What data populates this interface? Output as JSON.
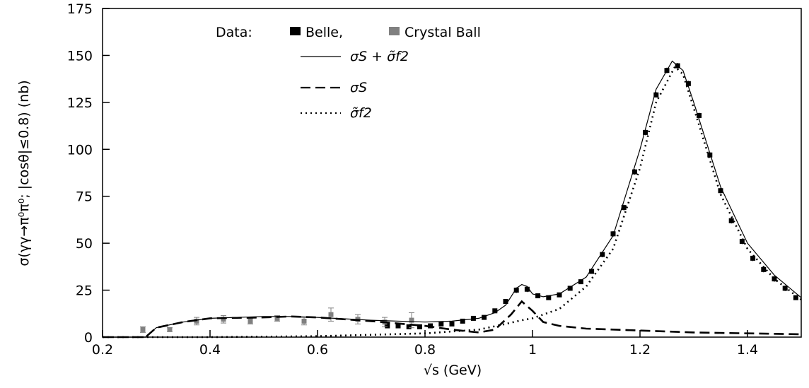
{
  "chart_data": {
    "type": "scatter",
    "xlabel": "√s (GeV)",
    "ylabel": "σ(γγ→π⁰π⁰; |cosθ|≤0.8) (nb)",
    "legend_title": "Data:",
    "xlim": [
      0.2,
      1.5
    ],
    "xticks": [
      0.2,
      0.4,
      0.6,
      0.8,
      1,
      1.2,
      1.4
    ],
    "ylim": [
      0,
      175
    ],
    "yticks": [
      0,
      25,
      50,
      75,
      100,
      125,
      150,
      175
    ],
    "series": [
      {
        "name": "Belle,",
        "color": "#000000",
        "style": "points",
        "x": [
          0.73,
          0.75,
          0.77,
          0.79,
          0.81,
          0.83,
          0.85,
          0.87,
          0.89,
          0.91,
          0.93,
          0.95,
          0.97,
          0.99,
          1.01,
          1.03,
          1.05,
          1.07,
          1.09,
          1.11,
          1.13,
          1.15,
          1.17,
          1.19,
          1.21,
          1.23,
          1.25,
          1.27,
          1.29,
          1.31,
          1.33,
          1.35,
          1.37,
          1.39,
          1.41,
          1.43,
          1.45,
          1.47,
          1.49
        ],
        "values": [
          6,
          6,
          5.5,
          5.5,
          6,
          7,
          7,
          8.5,
          10,
          10.5,
          14,
          19,
          25,
          25.5,
          22,
          21,
          22.5,
          26,
          29.5,
          35,
          44,
          55,
          69,
          88,
          109,
          129,
          142,
          144.5,
          135,
          118,
          97,
          78,
          62,
          51,
          42,
          36,
          31,
          26,
          21
        ],
        "errors": [
          1,
          1,
          1,
          1,
          1,
          1,
          1,
          1,
          1,
          1,
          1,
          1,
          1.5,
          1.5,
          1,
          1,
          1,
          1,
          1,
          1,
          1.5,
          1.5,
          1.5,
          1.5,
          1.5,
          1.5,
          1.5,
          1.5,
          1.5,
          1.5,
          1.5,
          1.5,
          1.5,
          1.5,
          1.5,
          1.5,
          1.5,
          1.5,
          1
        ]
      },
      {
        "name": "Crystal Ball",
        "color": "#808080",
        "style": "points",
        "x": [
          0.275,
          0.325,
          0.375,
          0.425,
          0.475,
          0.525,
          0.575,
          0.625,
          0.675,
          0.725,
          0.775
        ],
        "values": [
          4,
          4,
          8.5,
          9.5,
          8.5,
          10,
          8.5,
          12,
          9.5,
          8,
          9
        ],
        "errors": [
          1.5,
          1,
          2,
          2,
          1.5,
          1.5,
          2,
          3.5,
          2.5,
          2.5,
          4
        ]
      },
      {
        "name": "σS + σ̃f2",
        "color": "#000000",
        "style": "solid",
        "x": [
          0.2,
          0.28,
          0.3,
          0.35,
          0.4,
          0.5,
          0.55,
          0.6,
          0.7,
          0.8,
          0.85,
          0.9,
          0.93,
          0.95,
          0.97,
          0.98,
          0.99,
          1.0,
          1.02,
          1.05,
          1.1,
          1.15,
          1.2,
          1.23,
          1.26,
          1.28,
          1.3,
          1.35,
          1.4,
          1.45,
          1.5
        ],
        "values": [
          0,
          0,
          5,
          8,
          10,
          11,
          11,
          10.5,
          9,
          8,
          8.5,
          10,
          13,
          17,
          26,
          28,
          27,
          23,
          21.5,
          23,
          32,
          54,
          100,
          132,
          147,
          142,
          125,
          80,
          50,
          33,
          21
        ]
      },
      {
        "name": "σS",
        "color": "#000000",
        "style": "dashed",
        "x": [
          0.2,
          0.28,
          0.3,
          0.35,
          0.4,
          0.5,
          0.55,
          0.6,
          0.7,
          0.8,
          0.85,
          0.9,
          0.93,
          0.96,
          0.98,
          1.0,
          1.02,
          1.05,
          1.1,
          1.2,
          1.3,
          1.4,
          1.5
        ],
        "values": [
          0,
          0,
          5,
          8,
          10,
          10.5,
          11,
          10.5,
          8.5,
          6,
          4,
          2.5,
          4,
          12,
          19,
          14,
          8,
          6,
          4.5,
          3.5,
          2.5,
          2,
          1.5
        ]
      },
      {
        "name": "σ̃f2",
        "color": "#000000",
        "style": "dotted",
        "x": [
          0.2,
          0.4,
          0.6,
          0.8,
          0.9,
          0.95,
          0.98,
          1.0,
          1.05,
          1.1,
          1.15,
          1.2,
          1.23,
          1.265,
          1.28,
          1.3,
          1.35,
          1.4,
          1.45,
          1.5
        ],
        "values": [
          0,
          0,
          0.5,
          2,
          4,
          7,
          9,
          10,
          15,
          27,
          47,
          90,
          125,
          144,
          140,
          122,
          76,
          47,
          31,
          20
        ]
      }
    ]
  }
}
